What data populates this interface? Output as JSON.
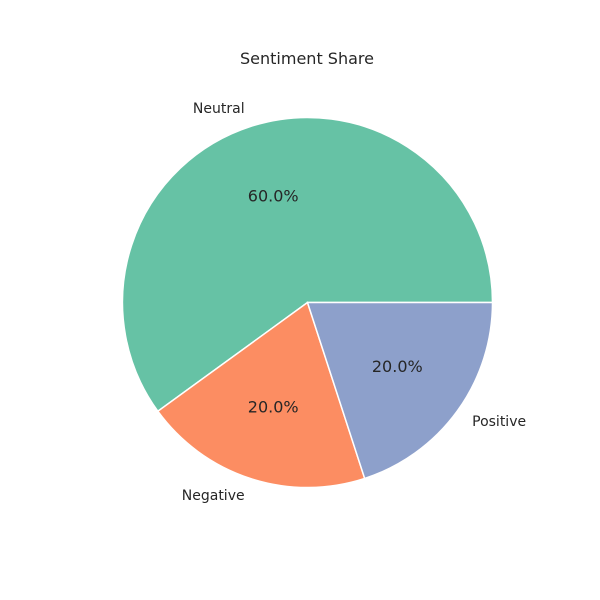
{
  "chart_data": {
    "type": "pie",
    "title": "Sentiment Share",
    "categories": [
      "Neutral",
      "Negative",
      "Positive"
    ],
    "values": [
      60,
      20,
      20
    ],
    "percent_labels": [
      "60.0%",
      "20.0%",
      "20.0%"
    ],
    "colors": [
      "#66c2a5",
      "#fc8d62",
      "#8da0cb"
    ],
    "start_angle_degrees": 0,
    "direction": "counterclockwise",
    "legend": "none"
  }
}
